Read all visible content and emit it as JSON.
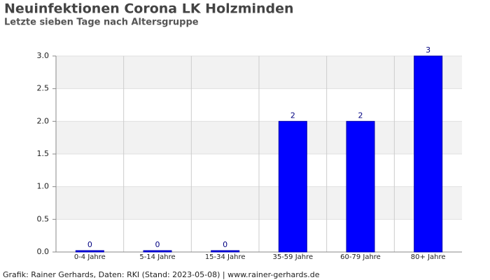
{
  "chart_data": {
    "type": "bar",
    "title": "Neuinfektionen Corona LK Holzminden",
    "subtitle": "Letzte sieben Tage nach Altersgruppe",
    "footer": "Grafik: Rainer Gerhards, Daten: RKI (Stand: 2023-05-08) | www.rainer-gerhards.de",
    "categories": [
      "0-4 Jahre",
      "5-14 Jahre",
      "15-34 Jahre",
      "35-59 Jahre",
      "60-79 Jahre",
      "80+ Jahre"
    ],
    "values": [
      0,
      0,
      0,
      2,
      2,
      3
    ],
    "color": "#0000ff",
    "ylim": [
      0,
      3
    ],
    "yticks": [
      {
        "value": 0,
        "label": "0.0"
      },
      {
        "value": 0.5,
        "label": "0.5"
      },
      {
        "value": 1,
        "label": "1.0"
      },
      {
        "value": 1.5,
        "label": "1.5"
      },
      {
        "value": 2,
        "label": "2.0"
      },
      {
        "value": 2.5,
        "label": "2.5"
      },
      {
        "value": 3,
        "label": "3.0"
      }
    ],
    "grid": true
  }
}
